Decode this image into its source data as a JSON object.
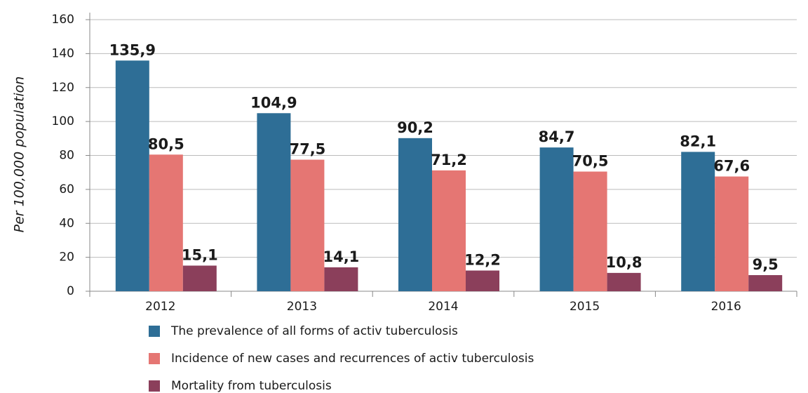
{
  "chart_data": {
    "type": "bar",
    "y_label": "Per 100,000 population",
    "categories": [
      "2012",
      "2013",
      "2014",
      "2015",
      "2016"
    ],
    "series": [
      {
        "name": "The prevalence of all forms of activ tuberculosis",
        "color": "#2e6e96",
        "values": [
          135.9,
          104.9,
          90.2,
          84.7,
          82.1
        ],
        "value_labels": [
          "135,9",
          "104,9",
          "90,2",
          "84,7",
          "82,1"
        ]
      },
      {
        "name": "Incidence of new cases and recurrences of activ tuberculosis",
        "color": "#e57673",
        "values": [
          80.5,
          77.5,
          71.2,
          70.5,
          67.6
        ],
        "value_labels": [
          "80,5",
          "77,5",
          "71,2",
          "70,5",
          "67,6"
        ]
      },
      {
        "name": "Mortality from tuberculosis",
        "color": "#8b3f5b",
        "values": [
          15.1,
          14.1,
          12.2,
          10.8,
          9.5
        ],
        "value_labels": [
          "15,1",
          "14,1",
          "12,2",
          "10,8",
          "9,5"
        ]
      }
    ],
    "ylim": [
      0,
      160
    ],
    "yticks": [
      0,
      20,
      40,
      60,
      80,
      100,
      120,
      140,
      160
    ],
    "grid": true
  }
}
